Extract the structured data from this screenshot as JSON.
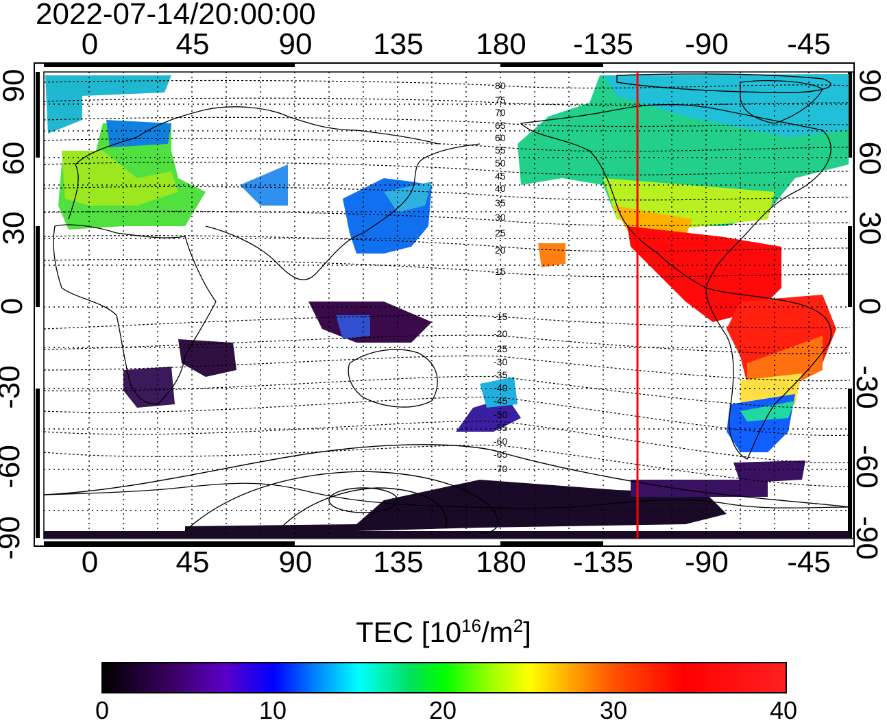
{
  "title": "2022-07-14/20:00:00",
  "lon_ticks_top": [
    "0",
    "45",
    "90",
    "135",
    "180",
    "-135",
    "-90",
    "-45"
  ],
  "lon_ticks_bottom": [
    "0",
    "45",
    "90",
    "135",
    "180",
    "-135",
    "-90",
    "-45"
  ],
  "lat_ticks_left": [
    "90",
    "60",
    "30",
    "0",
    "-30",
    "-60",
    "-90"
  ],
  "lat_ticks_right": [
    "90",
    "60",
    "30",
    "0",
    "-30",
    "-60",
    "-90"
  ],
  "contour_labels_north": [
    "80",
    "75",
    "70",
    "65",
    "60",
    "55",
    "50",
    "45",
    "40",
    "35",
    "30",
    "25",
    "20",
    "15"
  ],
  "contour_labels_south": [
    "-15",
    "-20",
    "-25",
    "-30",
    "-35",
    "-40",
    "-45",
    "-50",
    "-55",
    "-60",
    "-65",
    "-70"
  ],
  "terminator_longitude": -120,
  "colors": {
    "terminator": "#ff0000",
    "grid": "#000000"
  },
  "colorbar": {
    "title_prefix": "TEC  [10",
    "title_sup1": "16",
    "title_mid": "/m",
    "title_sup2": "2",
    "title_suffix": "]",
    "ticks": [
      "0",
      "10",
      "20",
      "30",
      "40"
    ],
    "range": [
      0,
      40
    ]
  },
  "tec_regions": [
    {
      "name": "north-america",
      "tec": 18
    },
    {
      "name": "central-america",
      "tec": 39
    },
    {
      "name": "south-america-north",
      "tec": 37
    },
    {
      "name": "south-america-south",
      "tec": 12
    },
    {
      "name": "europe",
      "tec": 22
    },
    {
      "name": "east-asia",
      "tec": 12
    },
    {
      "name": "southeast-asia",
      "tec": 4
    },
    {
      "name": "africa",
      "tec": 4
    },
    {
      "name": "antarctica",
      "tec": 1
    },
    {
      "name": "new-zealand",
      "tec": 6
    }
  ]
}
